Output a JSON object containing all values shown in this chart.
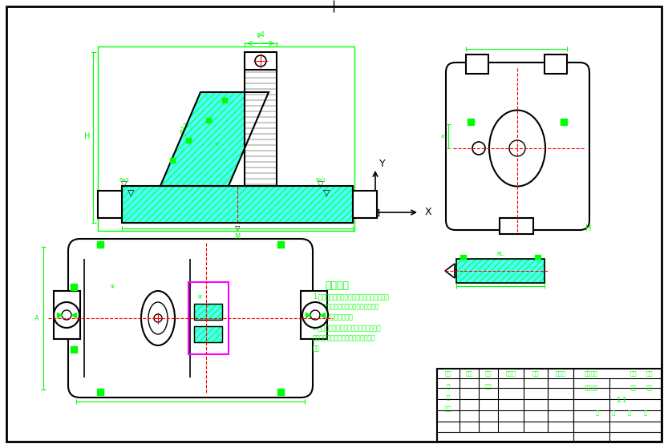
{
  "bg_color": "#ffffff",
  "green": "#00ff00",
  "cyan": "#00ffff",
  "red": "#ff0000",
  "magenta": "#ff00ff",
  "black": "#000000",
  "title_text": "技术要求",
  "tech_req1": "1.零件在流程前必须将里和外面清洗干净，不",
  "tech_req2": "得有毛刺、飞边、氧化皮、鐵锈、切屑、",
  "tech_req3": "油污、着色剂和安全漆。",
  "tech_req4": "2.零配合处材料、部件检主要配合尺寸，",
  "tech_req5": "使用高处温配合尺寸及用无损检测许发",
  "tech_req6": "差。"
}
